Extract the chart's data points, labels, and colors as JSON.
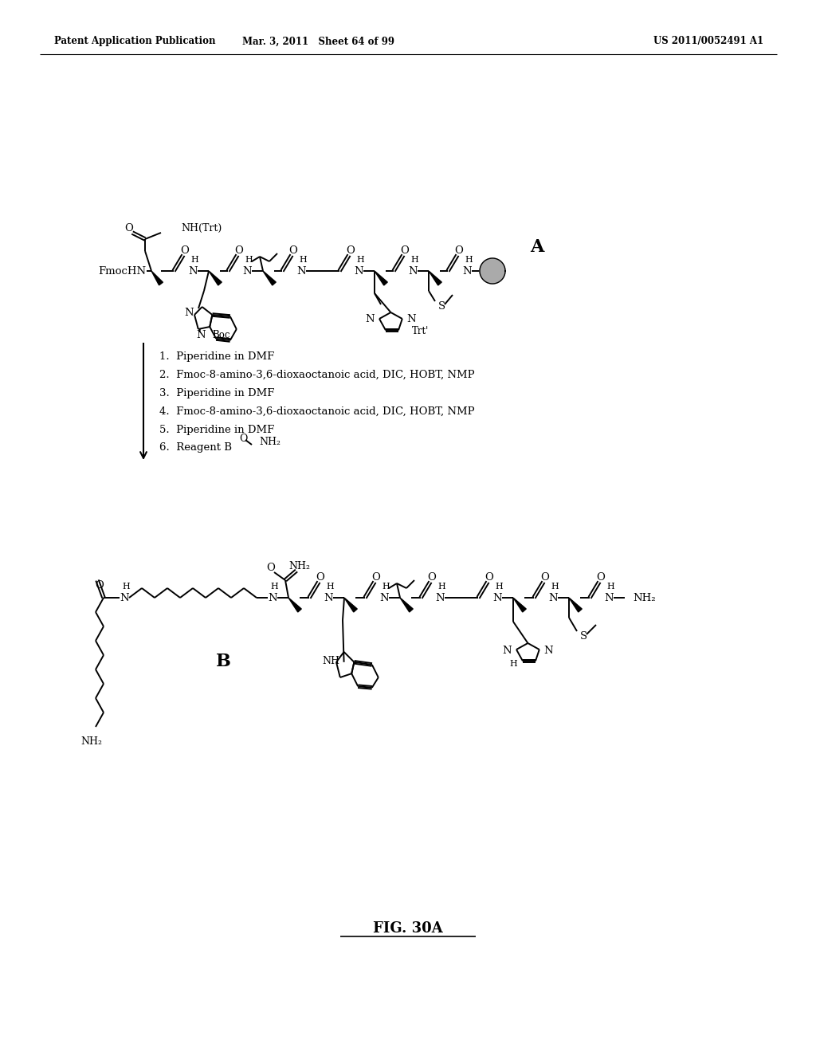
{
  "header_left": "Patent Application Publication",
  "header_mid": "Mar. 3, 2011   Sheet 64 of 99",
  "header_right": "US 2011/0052491 A1",
  "fig_title": "FIG. 30A",
  "reaction_steps": [
    "1.  Piperidine in DMF",
    "2.  Fmoc-8-amino-3,6-dioxaoctanoic acid, DIC, HOBT, NMP",
    "3.  Piperidine in DMF",
    "4.  Fmoc-8-amino-3,6-dioxaoctanoic acid, DIC, HOBT, NMP",
    "5.  Piperidine in DMF",
    "6.  Reagent B"
  ],
  "struct_A_label": "A",
  "struct_B_label": "B",
  "bg": "#ffffff"
}
